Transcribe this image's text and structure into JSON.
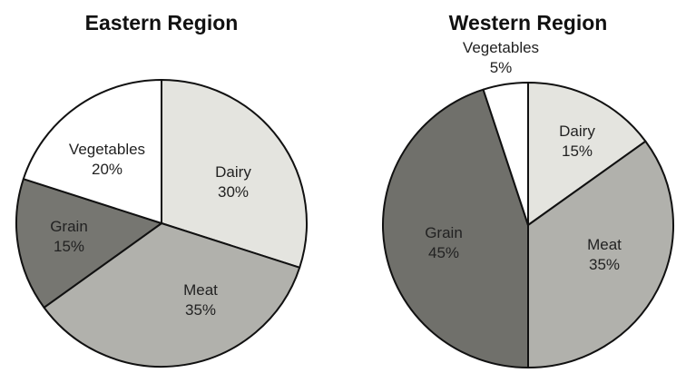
{
  "chart_data": [
    {
      "type": "pie",
      "title": "Eastern Region",
      "start": "top",
      "direction": "clockwise",
      "slices": [
        {
          "label": "Dairy",
          "value": 30,
          "value_label": "30%",
          "color": "#e4e4df"
        },
        {
          "label": "Meat",
          "value": 35,
          "value_label": "35%",
          "color": "#b1b1ac"
        },
        {
          "label": "Grain",
          "value": 15,
          "value_label": "15%",
          "color": "#767671"
        },
        {
          "label": "Vegetables",
          "value": 20,
          "value_label": "20%",
          "color": "#ffffff"
        }
      ]
    },
    {
      "type": "pie",
      "title": "Western Region",
      "start": "top",
      "direction": "clockwise",
      "slices": [
        {
          "label": "Dairy",
          "value": 15,
          "value_label": "15%",
          "color": "#e4e4df"
        },
        {
          "label": "Meat",
          "value": 35,
          "value_label": "35%",
          "color": "#b1b1ac"
        },
        {
          "label": "Grain",
          "value": 45,
          "value_label": "45%",
          "color": "#70706b"
        },
        {
          "label": "Vegetables",
          "value": 5,
          "value_label": "5%",
          "color": "#ffffff"
        }
      ]
    }
  ]
}
